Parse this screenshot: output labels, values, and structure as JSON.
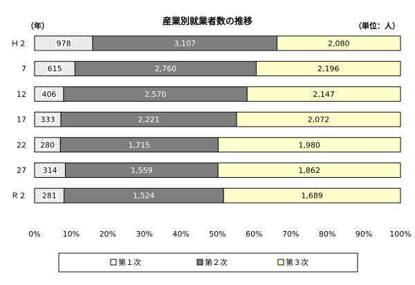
{
  "chart_data": {
    "type": "bar",
    "orientation": "horizontal",
    "stacked": "percent",
    "title": "産業別就業者数の推移",
    "unit_left": "（年）",
    "unit_right": "（単位：人）",
    "categories": [
      "Ｈ２",
      "7",
      "12",
      "17",
      "22",
      "27",
      "Ｒ２"
    ],
    "series": [
      {
        "name": "第１次",
        "values": [
          978,
          615,
          406,
          333,
          280,
          314,
          281
        ],
        "color": "#ffffff",
        "pattern": "dots"
      },
      {
        "name": "第２次",
        "values": [
          3107,
          2760,
          2570,
          2221,
          1715,
          1559,
          1524
        ],
        "color": "#7f7f7f",
        "label_color": "#ffffff"
      },
      {
        "name": "第３次",
        "values": [
          2080,
          2196,
          2147,
          2072,
          1980,
          1862,
          1689
        ],
        "color": "#ffffcc"
      }
    ],
    "value_labels": [
      [
        "978",
        "3,107",
        "2,080"
      ],
      [
        "615",
        "2,760",
        "2,196"
      ],
      [
        "406",
        "2,570",
        "2,147"
      ],
      [
        "333",
        "2,221",
        "2,072"
      ],
      [
        "280",
        "1,715",
        "1,980"
      ],
      [
        "314",
        "1,559",
        "1,862"
      ],
      [
        "281",
        "1,524",
        "1,689"
      ]
    ],
    "x_ticks": [
      "0%",
      "10%",
      "20%",
      "30%",
      "40%",
      "50%",
      "60%",
      "70%",
      "80%",
      "90%",
      "100%"
    ],
    "xlim": [
      0,
      100
    ],
    "grid": false,
    "legend": "bottom"
  }
}
